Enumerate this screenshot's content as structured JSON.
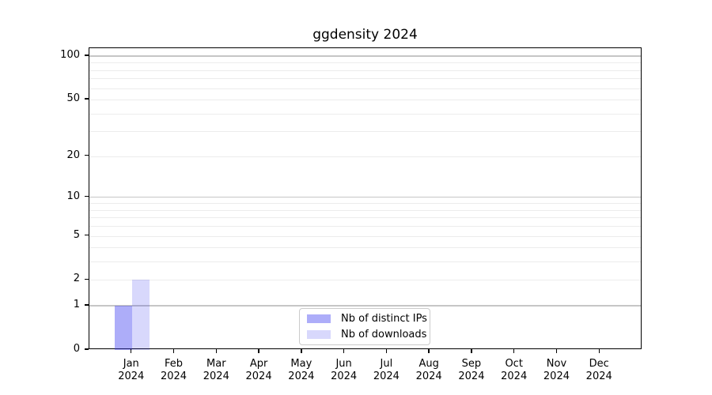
{
  "chart_data": {
    "type": "bar",
    "title": "ggdensity 2024",
    "categories": [
      "Jan 2024",
      "Feb 2024",
      "Mar 2024",
      "Apr 2024",
      "May 2024",
      "Jun 2024",
      "Jul 2024",
      "Aug 2024",
      "Sep 2024",
      "Oct 2024",
      "Nov 2024",
      "Dec 2024"
    ],
    "series": [
      {
        "name": "Nb of distinct IPs",
        "color": "rgba(60,60,240,0.42)",
        "values": [
          1,
          0,
          0,
          0,
          0,
          0,
          0,
          0,
          0,
          0,
          0,
          0
        ]
      },
      {
        "name": "Nb of downloads",
        "color": "rgba(60,60,240,0.20)",
        "values": [
          2,
          0,
          0,
          0,
          0,
          0,
          0,
          0,
          0,
          0,
          0,
          0
        ]
      }
    ],
    "xlabel": "",
    "ylabel": "",
    "yscale": "log1p",
    "ylim": [
      0,
      113.5
    ],
    "yticks": [
      0,
      1,
      2,
      5,
      10,
      20,
      50,
      100
    ],
    "grid_major": [
      1,
      10,
      100
    ],
    "grid_minor": [
      2,
      3,
      4,
      5,
      6,
      7,
      8,
      9,
      20,
      30,
      40,
      50,
      60,
      70,
      80,
      90
    ],
    "legend": {
      "position": "bottom-center",
      "entries": [
        "Nb of distinct IPs",
        "Nb of downloads"
      ]
    },
    "colors": {
      "grid_major": "#c6c6c6",
      "grid_minor": "#ececec",
      "bar_distinct_ips_on_white": "#adadf9",
      "bar_downloads_on_white": "#d8d8fc",
      "frame": "#000000"
    }
  }
}
